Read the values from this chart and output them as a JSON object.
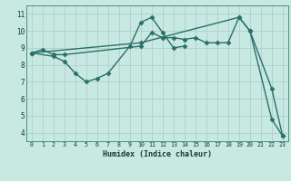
{
  "line1_x": [
    0,
    1,
    2,
    3,
    10,
    11,
    12,
    13,
    14,
    15,
    16,
    17,
    18,
    19,
    20,
    22,
    23
  ],
  "line1_y": [
    8.7,
    8.9,
    8.6,
    8.6,
    9.1,
    9.9,
    9.6,
    9.6,
    9.5,
    9.6,
    9.3,
    9.3,
    9.3,
    10.8,
    10.0,
    4.8,
    3.8
  ],
  "line2_x": [
    0,
    2,
    3,
    4,
    5,
    6,
    7,
    9,
    10,
    11,
    12,
    13,
    14
  ],
  "line2_y": [
    8.7,
    8.5,
    8.2,
    7.5,
    7.0,
    7.2,
    7.5,
    9.1,
    10.5,
    10.8,
    9.9,
    9.0,
    9.1
  ],
  "line3_x": [
    0,
    10,
    19,
    20,
    22,
    23
  ],
  "line3_y": [
    8.7,
    9.3,
    10.8,
    10.0,
    6.6,
    3.8
  ],
  "line_color": "#2a7068",
  "bg_color": "#c8e8e2",
  "grid_color": "#aaccc6",
  "xlim": [
    -0.5,
    23.5
  ],
  "ylim": [
    3.5,
    11.5
  ],
  "xticks": [
    0,
    1,
    2,
    3,
    4,
    5,
    6,
    7,
    8,
    9,
    10,
    11,
    12,
    13,
    14,
    15,
    16,
    17,
    18,
    19,
    20,
    21,
    22,
    23
  ],
  "yticks": [
    4,
    5,
    6,
    7,
    8,
    9,
    10,
    11
  ],
  "xlabel": "Humidex (Indice chaleur)",
  "markersize": 2.5,
  "linewidth": 1.0
}
